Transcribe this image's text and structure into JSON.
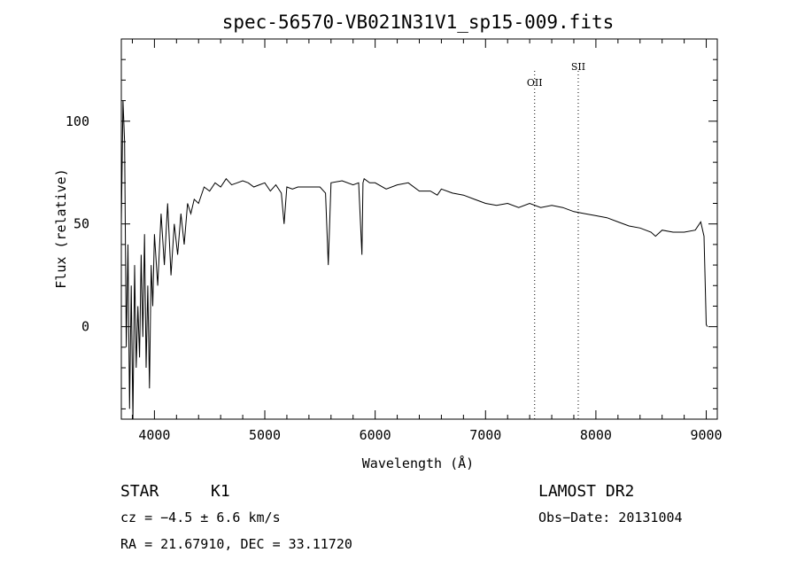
{
  "chart_data": {
    "type": "line",
    "title": "spec-56570-VB021N31V1_sp15-009.fits",
    "xlabel": "Wavelength (Å)",
    "ylabel": "Flux (relative)",
    "xlim": [
      3700,
      9100
    ],
    "ylim": [
      -45,
      140
    ],
    "xticks": [
      4000,
      5000,
      6000,
      7000,
      8000,
      9000
    ],
    "yticks": [
      0,
      50,
      100
    ],
    "emission_lines": [
      {
        "name": "OII",
        "wavelength": 7445
      },
      {
        "name": "SII",
        "wavelength": 7840
      }
    ],
    "series": [
      {
        "x": [
          3700,
          3715,
          3730,
          3745,
          3760,
          3775,
          3790,
          3805,
          3820,
          3835,
          3850,
          3865,
          3880,
          3895,
          3910,
          3925,
          3940,
          3955,
          3970,
          3985,
          4000,
          4030,
          4060,
          4090,
          4120,
          4150,
          4180,
          4210,
          4240,
          4270,
          4300,
          4330,
          4360,
          4400,
          4450,
          4500,
          4550,
          4600,
          4650,
          4700,
          4750,
          4800,
          4850,
          4900,
          4950,
          5000,
          5050,
          5100,
          5150,
          5175,
          5200,
          5250,
          5300,
          5400,
          5500,
          5550,
          5575,
          5600,
          5700,
          5800,
          5850,
          5880,
          5890,
          5900,
          5950,
          6000,
          6100,
          6200,
          6300,
          6400,
          6500,
          6563,
          6600,
          6700,
          6800,
          6900,
          7000,
          7100,
          7200,
          7300,
          7400,
          7500,
          7600,
          7700,
          7800,
          7900,
          8000,
          8100,
          8200,
          8300,
          8400,
          8500,
          8540,
          8600,
          8700,
          8800,
          8900,
          8950,
          8980,
          9000,
          9010
        ],
        "y": [
          50,
          110,
          90,
          -10,
          40,
          -40,
          20,
          -45,
          30,
          -20,
          10,
          -15,
          35,
          -5,
          45,
          -20,
          20,
          -30,
          30,
          10,
          45,
          20,
          55,
          30,
          60,
          25,
          50,
          35,
          55,
          40,
          60,
          55,
          62,
          60,
          68,
          66,
          70,
          68,
          72,
          69,
          70,
          71,
          70,
          68,
          69,
          70,
          66,
          69,
          65,
          50,
          68,
          67,
          68,
          68,
          68,
          65,
          30,
          70,
          71,
          69,
          70,
          35,
          70,
          72,
          70,
          70,
          67,
          69,
          70,
          66,
          66,
          64,
          67,
          65,
          64,
          62,
          60,
          59,
          60,
          58,
          60,
          58,
          59,
          58,
          56,
          55,
          54,
          53,
          51,
          49,
          48,
          46,
          44,
          47,
          46,
          46,
          47,
          51,
          44,
          1,
          0
        ]
      }
    ]
  },
  "info": {
    "object_class": "STAR",
    "subclass": "K1",
    "survey": "LAMOST DR2",
    "cz": "cz = −4.5 ± 6.6 km/s",
    "obs_date": "Obs−Date: 20131004",
    "coords": "RA =  21.67910, DEC =  33.11720"
  }
}
